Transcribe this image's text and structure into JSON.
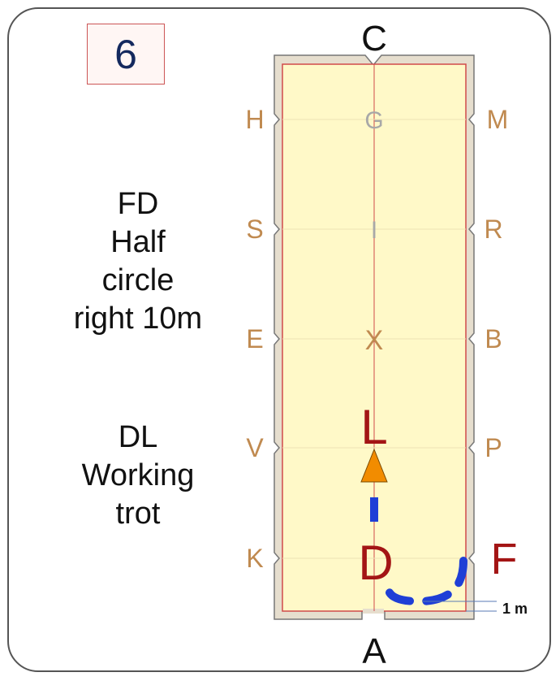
{
  "test_number": "6",
  "instructions": [
    {
      "lines": [
        "FD",
        "Half",
        "circle",
        "right 10m"
      ]
    },
    {
      "lines": [
        "DL",
        "Working",
        "trot"
      ]
    }
  ],
  "arena": {
    "letters": {
      "top": "C",
      "bottom": "A",
      "left": [
        "H",
        "S",
        "E",
        "V",
        "K"
      ],
      "right": [
        "M",
        "R",
        "B",
        "P"
      ],
      "centerline": [
        "G",
        "I",
        "X"
      ]
    },
    "highlighted": {
      "L": "L",
      "D": "D",
      "F": "F"
    },
    "measure_label": "1 m",
    "colors": {
      "arena_fill": "#fff9c8",
      "arena_border": "#e4dccd",
      "edge_line": "#d14a4a",
      "letter": "#c08a50",
      "highlight_letter": "#a31515",
      "path": "#1f3fd6",
      "arrow": "#f28c00"
    }
  }
}
